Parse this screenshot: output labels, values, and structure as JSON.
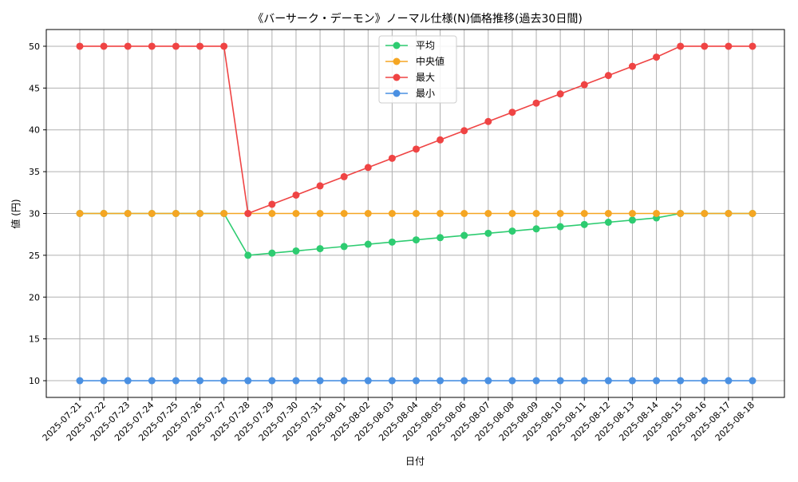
{
  "chart_data": {
    "type": "line",
    "title": "《バーサーク・デーモン》ノーマル仕様(N)価格推移(過去30日間)",
    "xlabel": "日付",
    "ylabel": "値 (円)",
    "ylim": [
      8,
      52
    ],
    "yticks": [
      10,
      15,
      20,
      25,
      30,
      35,
      40,
      45,
      50
    ],
    "grid": true,
    "legend_position": "top-center",
    "categories": [
      "2025-07-21",
      "2025-07-22",
      "2025-07-23",
      "2025-07-24",
      "2025-07-25",
      "2025-07-26",
      "2025-07-27",
      "2025-07-28",
      "2025-07-29",
      "2025-07-30",
      "2025-07-31",
      "2025-08-01",
      "2025-08-02",
      "2025-08-03",
      "2025-08-04",
      "2025-08-05",
      "2025-08-06",
      "2025-08-07",
      "2025-08-08",
      "2025-08-09",
      "2025-08-10",
      "2025-08-11",
      "2025-08-12",
      "2025-08-13",
      "2025-08-14",
      "2025-08-15",
      "2025-08-16",
      "2025-08-17",
      "2025-08-18"
    ],
    "series": [
      {
        "name": "平均",
        "color": "#2ecc71",
        "values": [
          30,
          30,
          30,
          30,
          30,
          30,
          30,
          25,
          25.26,
          25.52,
          25.79,
          26.05,
          26.32,
          26.58,
          26.84,
          27.11,
          27.37,
          27.63,
          27.89,
          28.16,
          28.42,
          28.68,
          28.95,
          29.21,
          29.47,
          30,
          30,
          30,
          30
        ]
      },
      {
        "name": "中央値",
        "color": "#f5a623",
        "values": [
          30,
          30,
          30,
          30,
          30,
          30,
          30,
          30,
          30,
          30,
          30,
          30,
          30,
          30,
          30,
          30,
          30,
          30,
          30,
          30,
          30,
          30,
          30,
          30,
          30,
          30,
          30,
          30,
          30
        ]
      },
      {
        "name": "最大",
        "color": "#ef4444",
        "values": [
          50,
          50,
          50,
          50,
          50,
          50,
          50,
          30,
          31.1,
          32.2,
          33.3,
          34.4,
          35.5,
          36.6,
          37.7,
          38.8,
          39.9,
          41.0,
          42.1,
          43.2,
          44.3,
          45.4,
          46.5,
          47.6,
          48.7,
          50,
          50,
          50,
          50
        ]
      },
      {
        "name": "最小",
        "color": "#4a90e2",
        "values": [
          10,
          10,
          10,
          10,
          10,
          10,
          10,
          10,
          10,
          10,
          10,
          10,
          10,
          10,
          10,
          10,
          10,
          10,
          10,
          10,
          10,
          10,
          10,
          10,
          10,
          10,
          10,
          10,
          10
        ]
      }
    ]
  }
}
